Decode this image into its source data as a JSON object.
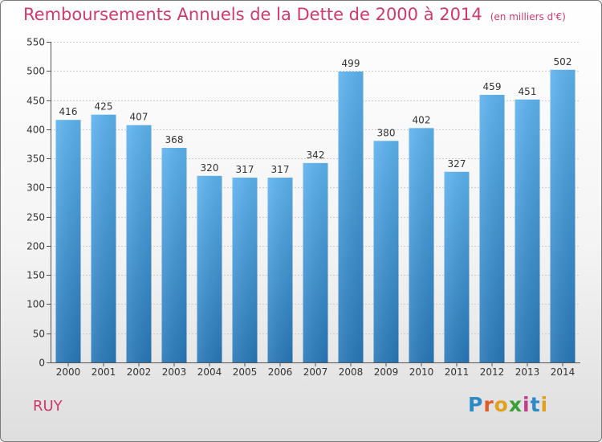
{
  "header": {
    "title": "Remboursements Annuels de la Dette de 2000 à 2014",
    "unit": "(en milliers d'€)"
  },
  "footer": {
    "commune": "RUY",
    "logo_text": "Proxiti"
  },
  "colors": {
    "title": "#d1386b",
    "bar_top": "#5db3ef",
    "bar_bottom": "#2878b8",
    "grid": "#cccccc",
    "axis": "#555555"
  },
  "logo_colors": [
    "#2c8ac7",
    "#e05a2a",
    "#e0a21e",
    "#3aa035",
    "#c23c8e",
    "#2c8ac7",
    "#e0a21e"
  ],
  "chart_data": {
    "type": "bar",
    "title": "Remboursements Annuels de la Dette de 2000 à 2014",
    "subtitle": "(en milliers d'€)",
    "xlabel": "",
    "ylabel": "",
    "categories": [
      "2000",
      "2001",
      "2002",
      "2003",
      "2004",
      "2005",
      "2006",
      "2007",
      "2008",
      "2009",
      "2010",
      "2011",
      "2012",
      "2013",
      "2014"
    ],
    "values": [
      416,
      425,
      407,
      368,
      320,
      317,
      317,
      342,
      499,
      380,
      402,
      327,
      459,
      451,
      502
    ],
    "data_labels": [
      "416",
      "425",
      "407",
      "368",
      "320",
      "317",
      "317",
      "342",
      "499",
      "380",
      "402",
      "327",
      "459",
      "451",
      "502"
    ],
    "ylim": [
      0,
      550
    ],
    "yticks": [
      0,
      50,
      100,
      150,
      200,
      250,
      300,
      350,
      400,
      450,
      500,
      550
    ],
    "grid": true,
    "legend": "none"
  }
}
